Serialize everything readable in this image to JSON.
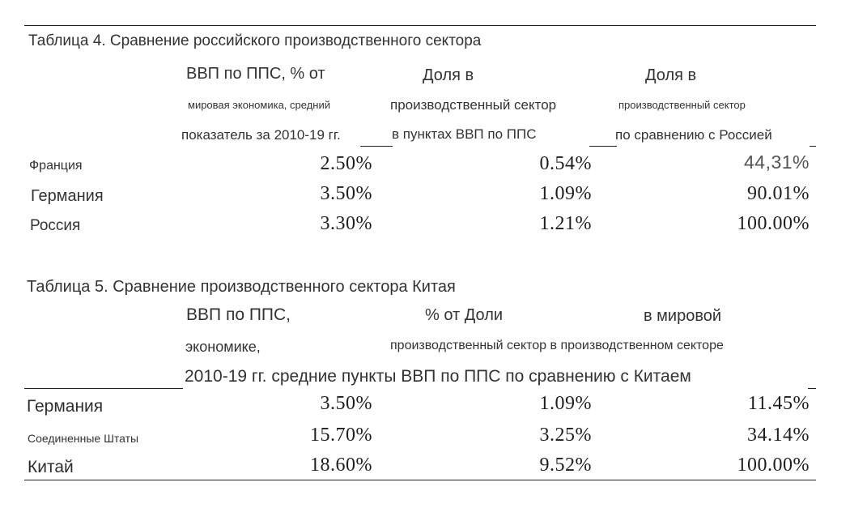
{
  "table4": {
    "title": "Таблица 4. Сравнение российского производственного сектора",
    "headers": {
      "c1": [
        "ВВП по ППС, % от",
        "мировая экономика, средний",
        "показатель за 2010-19 гг."
      ],
      "c2": [
        "Доля в",
        "производственный сектор",
        "в пунктах ВВП по ППС"
      ],
      "c3": [
        "Доля в",
        "производственный сектор",
        "по сравнению с Россией"
      ]
    },
    "rows": [
      {
        "country": "Франция",
        "gdp": "2.50%",
        "share": "0.54%",
        "rel": "44,31%"
      },
      {
        "country": "Германия",
        "gdp": "3.50%",
        "share": "1.09%",
        "rel": "90.01%"
      },
      {
        "country": "Россия",
        "gdp": "3.30%",
        "share": "1.21%",
        "rel": "100.00%"
      }
    ]
  },
  "table5": {
    "title": "Таблица 5. Сравнение производственного сектора Китая",
    "headers": {
      "r1": [
        "ВВП по ППС,",
        "% от Доли",
        "в мировой"
      ],
      "r2": [
        "экономике,",
        "производственный сектор в производственном секторе"
      ],
      "r3": "2010-19 гг. средние пункты ВВП по ППС по сравнению с Китаем"
    },
    "rows": [
      {
        "country": "Германия",
        "gdp": "3.50%",
        "share": "1.09%",
        "rel": "11.45%"
      },
      {
        "country": "Соединенные Штаты",
        "gdp": "15.70%",
        "share": "3.25%",
        "rel": "34.14%"
      },
      {
        "country": "Китай",
        "gdp": "18.60%",
        "share": "9.52%",
        "rel": "100.00%"
      }
    ]
  }
}
